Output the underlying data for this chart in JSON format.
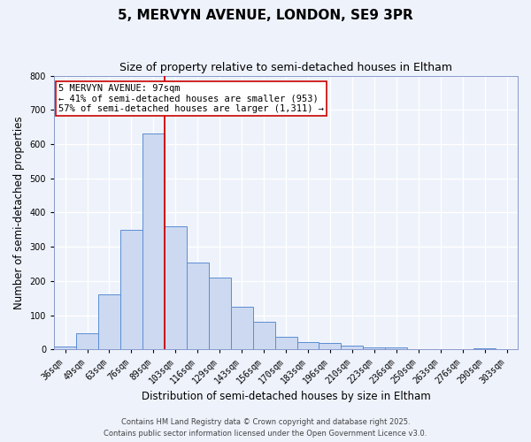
{
  "title": "5, MERVYN AVENUE, LONDON, SE9 3PR",
  "subtitle": "Size of property relative to semi-detached houses in Eltham",
  "xlabel": "Distribution of semi-detached houses by size in Eltham",
  "ylabel": "Number of semi-detached properties",
  "bar_labels": [
    "36sqm",
    "49sqm",
    "63sqm",
    "76sqm",
    "89sqm",
    "103sqm",
    "116sqm",
    "129sqm",
    "143sqm",
    "156sqm",
    "170sqm",
    "183sqm",
    "196sqm",
    "210sqm",
    "223sqm",
    "236sqm",
    "250sqm",
    "263sqm",
    "276sqm",
    "290sqm",
    "303sqm"
  ],
  "bar_values": [
    8,
    48,
    160,
    350,
    630,
    360,
    255,
    210,
    125,
    80,
    38,
    22,
    20,
    12,
    7,
    5,
    0,
    0,
    0,
    3,
    0
  ],
  "bar_color": "#ccd9f0",
  "bar_edge_color": "#5b8dd4",
  "vline_color": "#cc0000",
  "vline_index": 4.5,
  "ylim": [
    0,
    800
  ],
  "yticks": [
    0,
    100,
    200,
    300,
    400,
    500,
    600,
    700,
    800
  ],
  "annotation_title": "5 MERVYN AVENUE: 97sqm",
  "annotation_line1": "← 41% of semi-detached houses are smaller (953)",
  "annotation_line2": "57% of semi-detached houses are larger (1,311) →",
  "annotation_box_color": "#ffffff",
  "annotation_box_edge": "#cc0000",
  "footer1": "Contains HM Land Registry data © Crown copyright and database right 2025.",
  "footer2": "Contains public sector information licensed under the Open Government Licence v3.0.",
  "background_color": "#eef2fb",
  "grid_color": "#ffffff",
  "title_fontsize": 11,
  "subtitle_fontsize": 9,
  "axis_label_fontsize": 8.5,
  "tick_fontsize": 7,
  "annotation_fontsize": 7.5,
  "footer_fontsize": 6
}
